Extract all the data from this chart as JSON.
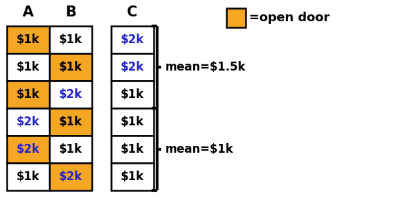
{
  "col_headers": [
    "A",
    "B",
    "C"
  ],
  "rows": [
    {
      "A_val": "$1k",
      "A_bg": "#F5A623",
      "A_color": "black",
      "B_val": "$1k",
      "B_bg": "white",
      "B_color": "black",
      "C_val": "$2k",
      "C_bg": "white",
      "C_color": "#2222cc"
    },
    {
      "A_val": "$1k",
      "A_bg": "white",
      "A_color": "black",
      "B_val": "$1k",
      "B_bg": "#F5A623",
      "B_color": "black",
      "C_val": "$2k",
      "C_bg": "white",
      "C_color": "#2222cc"
    },
    {
      "A_val": "$1k",
      "A_bg": "#F5A623",
      "A_color": "black",
      "B_val": "$2k",
      "B_bg": "white",
      "B_color": "#2222cc",
      "C_val": "$1k",
      "C_bg": "white",
      "C_color": "black"
    },
    {
      "A_val": "$2k",
      "A_bg": "white",
      "A_color": "#2222cc",
      "B_val": "$1k",
      "B_bg": "#F5A623",
      "B_color": "black",
      "C_val": "$1k",
      "C_bg": "white",
      "C_color": "black"
    },
    {
      "A_val": "$2k",
      "A_bg": "#F5A623",
      "A_color": "#2222cc",
      "B_val": "$1k",
      "B_bg": "white",
      "B_color": "black",
      "C_val": "$1k",
      "C_bg": "white",
      "C_color": "black"
    },
    {
      "A_val": "$1k",
      "A_bg": "white",
      "A_color": "black",
      "B_val": "$2k",
      "B_bg": "#F5A623",
      "B_color": "#2222cc",
      "C_val": "$1k",
      "C_bg": "white",
      "C_color": "black"
    }
  ],
  "orange_color": "#F5A623",
  "legend_text": "=open door",
  "mean1_text": "mean=$1.5k",
  "mean2_text": "mean=$1k"
}
